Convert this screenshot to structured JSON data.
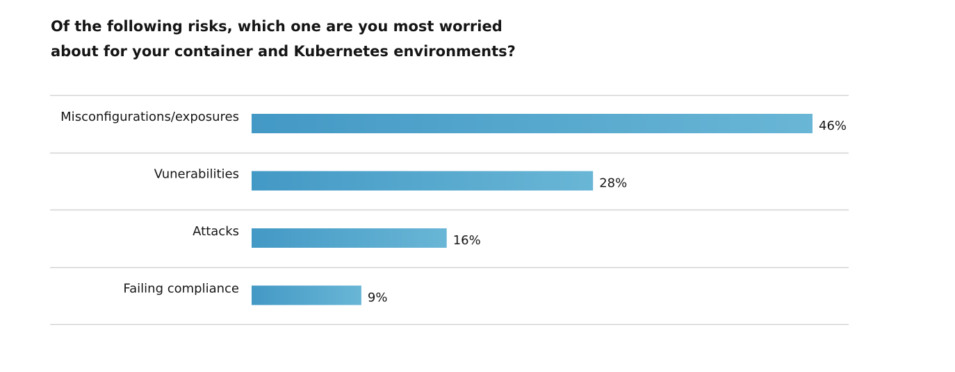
{
  "title": "Of the following risks, which one are you most worried about for your container and Kubernetes environments?",
  "colors": {
    "bar_start": "#4399c5",
    "bar_end": "#69b6d6",
    "divider": "#d2d2d2",
    "text": "#151515"
  },
  "chart_data": {
    "type": "bar",
    "orientation": "horizontal",
    "title": "Of the following risks, which one are you most worried about for your container and Kubernetes environments?",
    "categories": [
      "Misconfigurations/exposures",
      "Vunerabilities",
      "Attacks",
      "Failing compliance"
    ],
    "values": [
      46,
      28,
      16,
      9
    ],
    "value_labels": [
      "46%",
      "28%",
      "16%",
      "9%"
    ],
    "unit": "%",
    "xlim": [
      0,
      46
    ],
    "grid": false,
    "legend": "none"
  }
}
